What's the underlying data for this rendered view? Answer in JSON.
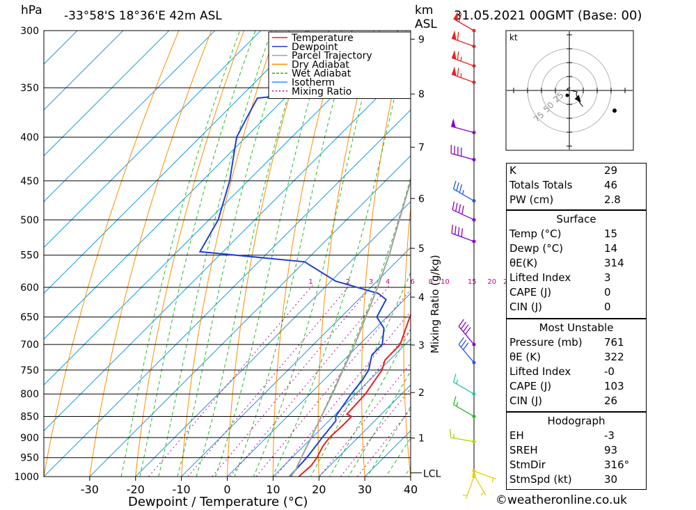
{
  "header": {
    "pressure_unit": "hPa",
    "title": "-33°58'S  18°36'E  42m  ASL",
    "height_unit_line1": "km",
    "height_unit_line2": "ASL",
    "date": "31.05.2021  00GMT  (Base: 00)"
  },
  "chart_data": {
    "type": "line",
    "subtype": "skew-T log-p diagram",
    "xlabel": "Dewpoint / Temperature (°C)",
    "ylabel": "hPa",
    "y2label": "Mixing Ratio (g/kg)",
    "xlim": [
      -40,
      40
    ],
    "ylim": [
      1000,
      300
    ],
    "y_scale": "log",
    "x_ticks": [
      "-30",
      "-20",
      "-10",
      "0",
      "10",
      "20",
      "30",
      "40"
    ],
    "pressure_levels": [
      300,
      350,
      400,
      450,
      500,
      550,
      600,
      650,
      700,
      750,
      800,
      850,
      900,
      950,
      1000
    ],
    "height_km_ticks": [
      {
        "km": "1",
        "p": 901
      },
      {
        "km": "2",
        "p": 797
      },
      {
        "km": "3",
        "p": 701
      },
      {
        "km": "4",
        "p": 616
      },
      {
        "km": "5",
        "p": 540
      },
      {
        "km": "6",
        "p": 472
      },
      {
        "km": "7",
        "p": 411
      },
      {
        "km": "8",
        "p": 356
      },
      {
        "km": "9",
        "p": 307
      }
    ],
    "lcl_label": "LCL",
    "lcl_pressure": 990,
    "mixing_ratio_labels": [
      "1",
      "2",
      "3",
      "4",
      "6",
      "8",
      "10",
      "15",
      "20",
      "25"
    ],
    "mixing_ratio_label_pressure": 600,
    "legend": {
      "placement": "top-right",
      "entries": [
        {
          "name": "Temperature",
          "color": "#e52222"
        },
        {
          "name": "Dewpoint",
          "color": "#1f3fd6"
        },
        {
          "name": "Parcel Trajectory",
          "color": "#a0a0a0"
        },
        {
          "name": "Dry Adiabat",
          "color": "#ff8c00"
        },
        {
          "name": "Wet Adiabat",
          "color": "#22bb22"
        },
        {
          "name": "Isotherm",
          "color": "#1e9be0"
        },
        {
          "name": "Mixing Ratio",
          "color": "#cc0099"
        }
      ]
    },
    "series": [
      {
        "name": "Temperature",
        "color": "#e52222",
        "points": [
          {
            "p": 1000,
            "t": 15.6
          },
          {
            "p": 970,
            "t": 15.9
          },
          {
            "p": 950,
            "t": 15.4
          },
          {
            "p": 920,
            "t": 14.2
          },
          {
            "p": 900,
            "t": 13.8
          },
          {
            "p": 870,
            "t": 14.0
          },
          {
            "p": 850,
            "t": 14.0
          },
          {
            "p": 845,
            "t": 12.5
          },
          {
            "p": 800,
            "t": 12.1
          },
          {
            "p": 750,
            "t": 10.5
          },
          {
            "p": 730,
            "t": 9.0
          },
          {
            "p": 700,
            "t": 8.9
          },
          {
            "p": 650,
            "t": 5.0
          },
          {
            "p": 600,
            "t": 1.0
          },
          {
            "p": 550,
            "t": -3.4
          },
          {
            "p": 500,
            "t": -9.0
          },
          {
            "p": 450,
            "t": -15.0
          },
          {
            "p": 400,
            "t": -21.0
          },
          {
            "p": 350,
            "t": -28.0
          },
          {
            "p": 330,
            "t": -31.0
          },
          {
            "p": 300,
            "t": -36.5
          }
        ]
      },
      {
        "name": "Dewpoint",
        "color": "#1f3fd6",
        "points": [
          {
            "p": 1000,
            "t": 13.6
          },
          {
            "p": 990,
            "t": 13.5
          },
          {
            "p": 950,
            "t": 13.2
          },
          {
            "p": 900,
            "t": 12.2
          },
          {
            "p": 860,
            "t": 11.5
          },
          {
            "p": 850,
            "t": 10.5
          },
          {
            "p": 800,
            "t": 9.0
          },
          {
            "p": 770,
            "t": 8.4
          },
          {
            "p": 750,
            "t": 7.6
          },
          {
            "p": 720,
            "t": 5.0
          },
          {
            "p": 700,
            "t": 5.0
          },
          {
            "p": 670,
            "t": 1.8
          },
          {
            "p": 650,
            "t": -2.2
          },
          {
            "p": 620,
            "t": -4.0
          },
          {
            "p": 610,
            "t": -7.0
          },
          {
            "p": 590,
            "t": -19.0
          },
          {
            "p": 560,
            "t": -30.0
          },
          {
            "p": 545,
            "t": -55.0
          },
          {
            "p": 500,
            "t": -58.0
          },
          {
            "p": 450,
            "t": -64.0
          },
          {
            "p": 400,
            "t": -72.0
          },
          {
            "p": 380,
            "t": -74.0
          },
          {
            "p": 360,
            "t": -76.0
          },
          {
            "p": 345,
            "t": -48.0
          },
          {
            "p": 330,
            "t": -49.0
          },
          {
            "p": 315,
            "t": -51.0
          },
          {
            "p": 300,
            "t": -54.0
          }
        ]
      },
      {
        "name": "Parcel Trajectory",
        "color": "#a0a0a0",
        "points": [
          {
            "p": 1000,
            "t": 13.8
          },
          {
            "p": 980,
            "t": 13.4
          },
          {
            "p": 950,
            "t": 12.0
          },
          {
            "p": 900,
            "t": 9.8
          },
          {
            "p": 850,
            "t": 7.4
          },
          {
            "p": 800,
            "t": 4.9
          },
          {
            "p": 750,
            "t": 2.0
          },
          {
            "p": 700,
            "t": -1.0
          },
          {
            "p": 650,
            "t": -4.6
          },
          {
            "p": 600,
            "t": -8.5
          },
          {
            "p": 550,
            "t": -13.0
          },
          {
            "p": 500,
            "t": -18.5
          },
          {
            "p": 450,
            "t": -24.5
          },
          {
            "p": 400,
            "t": -31.5
          },
          {
            "p": 350,
            "t": -40.0
          },
          {
            "p": 300,
            "t": -50.0
          }
        ]
      }
    ],
    "wind_barbs": [
      {
        "p": 1000,
        "dir": 200,
        "spd": 5,
        "color": "#e8d000"
      },
      {
        "p": 995,
        "dir": 150,
        "spd": 5,
        "color": "#e8d000"
      },
      {
        "p": 985,
        "dir": 110,
        "spd": 5,
        "color": "#e8d000"
      },
      {
        "p": 910,
        "dir": 280,
        "spd": 15,
        "color": "#a0d800"
      },
      {
        "p": 850,
        "dir": 300,
        "spd": 15,
        "color": "#22bb22"
      },
      {
        "p": 800,
        "dir": 300,
        "spd": 15,
        "color": "#22c8a0"
      },
      {
        "p": 735,
        "dir": 320,
        "spd": 30,
        "color": "#2255ee"
      },
      {
        "p": 700,
        "dir": 320,
        "spd": 40,
        "color": "#8800cc"
      },
      {
        "p": 530,
        "dir": 290,
        "spd": 40,
        "color": "#8800cc"
      },
      {
        "p": 500,
        "dir": 295,
        "spd": 40,
        "color": "#8800cc"
      },
      {
        "p": 475,
        "dir": 300,
        "spd": 35,
        "color": "#2255ee"
      },
      {
        "p": 425,
        "dir": 285,
        "spd": 40,
        "color": "#8800cc"
      },
      {
        "p": 395,
        "dir": 285,
        "spd": 50,
        "color": "#8800cc"
      },
      {
        "p": 345,
        "dir": 290,
        "spd": 65,
        "color": "#e52222"
      },
      {
        "p": 330,
        "dir": 290,
        "spd": 65,
        "color": "#e52222"
      },
      {
        "p": 313,
        "dir": 290,
        "spd": 60,
        "color": "#e52222"
      },
      {
        "p": 300,
        "dir": 300,
        "spd": 60,
        "color": "#e52222"
      }
    ]
  },
  "hodograph": {
    "unit_label": "kt",
    "ring_labels": [
      "25",
      "50",
      "75"
    ],
    "storm_motion_dir": 316,
    "storm_motion_speed": 30
  },
  "indices": {
    "top": [
      {
        "label": "K",
        "value": "29"
      },
      {
        "label": "Totals Totals",
        "value": "46"
      },
      {
        "label": "PW (cm)",
        "value": "2.8"
      }
    ],
    "surface": {
      "title": "Surface",
      "rows": [
        {
          "label": "Temp (°C)",
          "value": "15"
        },
        {
          "label": "Dewp (°C)",
          "value": "14"
        },
        {
          "label": "θE(K)",
          "value": "314"
        },
        {
          "label": "Lifted Index",
          "value": "3"
        },
        {
          "label": "CAPE (J)",
          "value": "0"
        },
        {
          "label": "CIN (J)",
          "value": "0"
        }
      ]
    },
    "most_unstable": {
      "title": "Most Unstable",
      "rows": [
        {
          "label": "Pressure (mb)",
          "value": "761"
        },
        {
          "label": "θE (K)",
          "value": "322"
        },
        {
          "label": "Lifted Index",
          "value": "-0"
        },
        {
          "label": "CAPE (J)",
          "value": "103"
        },
        {
          "label": "CIN (J)",
          "value": "26"
        }
      ]
    },
    "hodograph_box": {
      "title": "Hodograph",
      "rows": [
        {
          "label": "EH",
          "value": "-3"
        },
        {
          "label": "SREH",
          "value": "93"
        },
        {
          "label": "StmDir",
          "value": "316°"
        },
        {
          "label": "StmSpd (kt)",
          "value": "30"
        }
      ]
    }
  },
  "footer": {
    "copyright_symbol": "©",
    "site": "weatheronline.co.uk"
  }
}
